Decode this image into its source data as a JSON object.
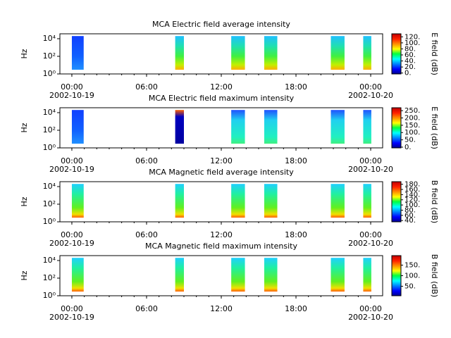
{
  "chart_data": [
    {
      "type": "heatmap",
      "title": "MCA  Electric field average intensity",
      "ylabel": "Hz",
      "xlim": [
        -0.96,
        24.96
      ],
      "xticks": [
        {
          "value": 0,
          "label": "00:00"
        },
        {
          "value": 6,
          "label": "06:00"
        },
        {
          "value": 12,
          "label": "12:00"
        },
        {
          "value": 18,
          "label": "18:00"
        },
        {
          "value": 24,
          "label": "00:00"
        }
      ],
      "dates": [
        {
          "value": 0,
          "label": "2002-10-19"
        },
        {
          "value": 24,
          "label": "2002-10-20"
        }
      ],
      "log_y": true,
      "ylim": [
        1,
        36000
      ],
      "yticks": [
        {
          "value": 1,
          "label": "10⁰"
        },
        {
          "value": 100,
          "label": "10²"
        },
        {
          "value": 10000,
          "label": "10⁴"
        }
      ],
      "freq_range": [
        3,
        20000
      ],
      "segments": [
        {
          "start": 0,
          "end": 0.95
        },
        {
          "start": 8.3,
          "end": 9.0
        },
        {
          "start": 12.8,
          "end": 13.9
        },
        {
          "start": 15.45,
          "end": 16.5
        },
        {
          "start": 20.8,
          "end": 21.9
        },
        {
          "start": 23.4,
          "end": 24.05
        }
      ],
      "colorbar": {
        "label": "E field (dB)",
        "lim": [
          -3,
          130
        ],
        "ticks": [
          {
            "value": 0,
            "label": "0."
          },
          {
            "value": 20,
            "label": "20."
          },
          {
            "value": 40,
            "label": "40."
          },
          {
            "value": 60,
            "label": "60."
          },
          {
            "value": 80,
            "label": "80."
          },
          {
            "value": 100,
            "label": "100."
          },
          {
            "value": 120,
            "label": "120."
          }
        ]
      }
    },
    {
      "type": "heatmap",
      "title": "MCA  Electric field maximum intensity",
      "ylabel": "Hz",
      "xlim": [
        -0.96,
        24.96
      ],
      "xticks": [
        {
          "value": 0,
          "label": "00:00"
        },
        {
          "value": 6,
          "label": "06:00"
        },
        {
          "value": 12,
          "label": "12:00"
        },
        {
          "value": 18,
          "label": "18:00"
        },
        {
          "value": 24,
          "label": "00:00"
        }
      ],
      "dates": [
        {
          "value": 0,
          "label": "2002-10-19"
        },
        {
          "value": 24,
          "label": "2002-10-20"
        }
      ],
      "log_y": true,
      "ylim": [
        1,
        36000
      ],
      "yticks": [
        {
          "value": 1,
          "label": "10⁰"
        },
        {
          "value": 100,
          "label": "10²"
        },
        {
          "value": 10000,
          "label": "10⁴"
        }
      ],
      "freq_range": [
        3,
        20000
      ],
      "segments": [
        {
          "start": 0,
          "end": 0.95
        },
        {
          "start": 8.3,
          "end": 9.0
        },
        {
          "start": 12.8,
          "end": 13.9
        },
        {
          "start": 15.45,
          "end": 16.5
        },
        {
          "start": 20.8,
          "end": 21.9
        },
        {
          "start": 23.4,
          "end": 24.05
        }
      ],
      "colorbar": {
        "label": "E field (dB)",
        "lim": [
          -5,
          270
        ],
        "ticks": [
          {
            "value": 0,
            "label": "0."
          },
          {
            "value": 50,
            "label": "50."
          },
          {
            "value": 100,
            "label": "100."
          },
          {
            "value": 150,
            "label": "150."
          },
          {
            "value": 200,
            "label": "200."
          },
          {
            "value": 250,
            "label": "250."
          }
        ]
      }
    },
    {
      "type": "heatmap",
      "title": "MCA  Magnetic field average intensity",
      "ylabel": "Hz",
      "xlim": [
        -0.96,
        24.96
      ],
      "xticks": [
        {
          "value": 0,
          "label": "00:00"
        },
        {
          "value": 6,
          "label": "06:00"
        },
        {
          "value": 12,
          "label": "12:00"
        },
        {
          "value": 18,
          "label": "18:00"
        },
        {
          "value": 24,
          "label": "00:00"
        }
      ],
      "dates": [
        {
          "value": 0,
          "label": "2002-10-19"
        },
        {
          "value": 24,
          "label": "2002-10-20"
        }
      ],
      "log_y": true,
      "ylim": [
        1,
        36000
      ],
      "yticks": [
        {
          "value": 1,
          "label": "10⁰"
        },
        {
          "value": 100,
          "label": "10²"
        },
        {
          "value": 10000,
          "label": "10⁴"
        }
      ],
      "freq_range": [
        3,
        20000
      ],
      "segments": [
        {
          "start": 0,
          "end": 0.95
        },
        {
          "start": 8.3,
          "end": 9.0
        },
        {
          "start": 12.8,
          "end": 13.9
        },
        {
          "start": 15.45,
          "end": 16.5
        },
        {
          "start": 20.8,
          "end": 21.9
        },
        {
          "start": 23.4,
          "end": 24.05
        }
      ],
      "colorbar": {
        "label": "B field (dB)",
        "lim": [
          35,
          190
        ],
        "ticks": [
          {
            "value": 40,
            "label": "40."
          },
          {
            "value": 60,
            "label": "60."
          },
          {
            "value": 80,
            "label": "80."
          },
          {
            "value": 100,
            "label": "100."
          },
          {
            "value": 120,
            "label": "120."
          },
          {
            "value": 140,
            "label": "140."
          },
          {
            "value": 160,
            "label": "160."
          },
          {
            "value": 180,
            "label": "180."
          }
        ]
      }
    },
    {
      "type": "heatmap",
      "title": "MCA  Magnetic field maximum intensity",
      "ylabel": "Hz",
      "xlim": [
        -0.96,
        24.96
      ],
      "xticks": [
        {
          "value": 0,
          "label": "00:00"
        },
        {
          "value": 6,
          "label": "06:00"
        },
        {
          "value": 12,
          "label": "12:00"
        },
        {
          "value": 18,
          "label": "18:00"
        },
        {
          "value": 24,
          "label": "00:00"
        }
      ],
      "dates": [
        {
          "value": 0,
          "label": "2002-10-19"
        },
        {
          "value": 24,
          "label": "2002-10-20"
        }
      ],
      "log_y": true,
      "ylim": [
        1,
        36000
      ],
      "yticks": [
        {
          "value": 1,
          "label": "10⁰"
        },
        {
          "value": 100,
          "label": "10²"
        },
        {
          "value": 10000,
          "label": "10⁴"
        }
      ],
      "freq_range": [
        3,
        20000
      ],
      "segments": [
        {
          "start": 0,
          "end": 0.95
        },
        {
          "start": 8.3,
          "end": 9.0
        },
        {
          "start": 12.8,
          "end": 13.9
        },
        {
          "start": 15.45,
          "end": 16.5
        },
        {
          "start": 20.8,
          "end": 21.9
        },
        {
          "start": 23.4,
          "end": 24.05
        }
      ],
      "colorbar": {
        "label": "B field (dB)",
        "lim": [
          5,
          195
        ],
        "ticks": [
          {
            "value": 50,
            "label": "50."
          },
          {
            "value": 100,
            "label": "100."
          },
          {
            "value": 150,
            "label": "150."
          }
        ]
      }
    }
  ]
}
